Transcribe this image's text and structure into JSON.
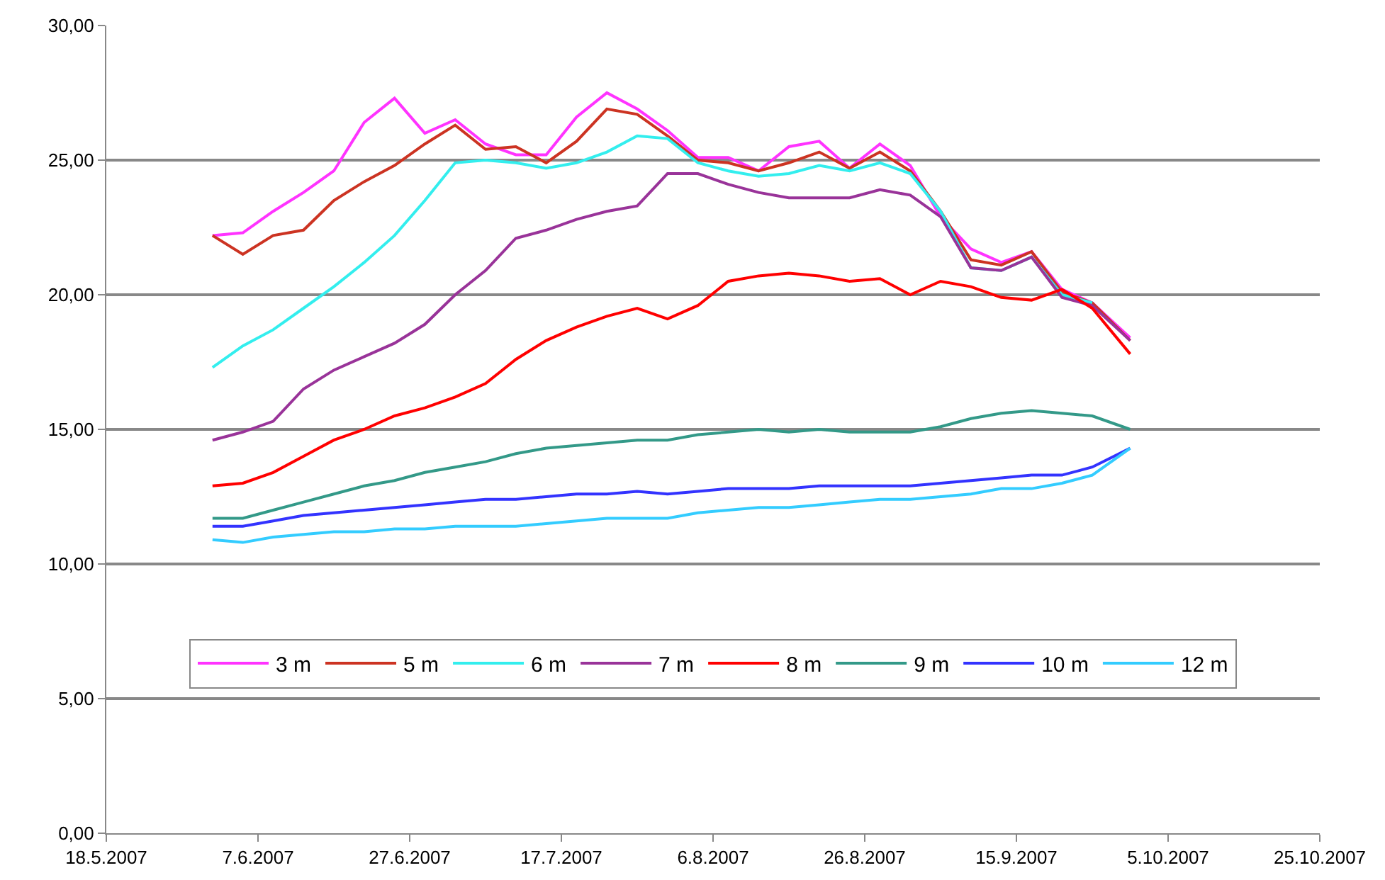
{
  "chart_data": {
    "type": "line",
    "x": [
      "2007-06-01",
      "2007-06-05",
      "2007-06-09",
      "2007-06-13",
      "2007-06-17",
      "2007-06-21",
      "2007-06-25",
      "2007-06-29",
      "2007-07-03",
      "2007-07-07",
      "2007-07-11",
      "2007-07-15",
      "2007-07-19",
      "2007-07-23",
      "2007-07-27",
      "2007-07-31",
      "2007-08-04",
      "2007-08-08",
      "2007-08-12",
      "2007-08-16",
      "2007-08-20",
      "2007-08-24",
      "2007-08-28",
      "2007-09-01",
      "2007-09-05",
      "2007-09-09",
      "2007-09-13",
      "2007-09-17",
      "2007-09-21",
      "2007-09-25",
      "2007-09-30"
    ],
    "series": [
      {
        "name": "3 m",
        "color": "#ff33ff",
        "values": [
          22.2,
          22.3,
          23.1,
          23.8,
          24.6,
          26.4,
          27.3,
          26.0,
          26.5,
          25.6,
          25.2,
          25.2,
          26.6,
          27.5,
          26.9,
          26.1,
          25.1,
          25.1,
          24.6,
          25.5,
          25.7,
          24.7,
          25.6,
          24.8,
          22.9,
          21.7,
          21.2,
          21.6,
          20.2,
          19.7,
          18.4
        ]
      },
      {
        "name": "5 m",
        "color": "#cc3322",
        "values": [
          22.2,
          21.5,
          22.2,
          22.4,
          23.5,
          24.2,
          24.8,
          25.6,
          26.3,
          25.4,
          25.5,
          24.9,
          25.7,
          26.9,
          26.7,
          25.9,
          25.0,
          24.9,
          24.6,
          24.9,
          25.3,
          24.7,
          25.3,
          24.6,
          23.1,
          21.3,
          21.1,
          21.6,
          20.1,
          19.7,
          18.3
        ]
      },
      {
        "name": "6 m",
        "color": "#33eeee",
        "values": [
          17.3,
          18.1,
          18.7,
          19.5,
          20.3,
          21.2,
          22.2,
          23.5,
          24.9,
          25.0,
          24.9,
          24.7,
          24.9,
          25.3,
          25.9,
          25.8,
          24.9,
          24.6,
          24.4,
          24.5,
          24.8,
          24.6,
          24.9,
          24.5,
          23.1,
          21.0,
          20.9,
          21.4,
          20.0,
          19.7,
          null
        ]
      },
      {
        "name": "7 m",
        "color": "#993399",
        "values": [
          14.6,
          14.9,
          15.3,
          16.5,
          17.2,
          17.7,
          18.2,
          18.9,
          20.0,
          20.9,
          22.1,
          22.4,
          22.8,
          23.1,
          23.3,
          24.5,
          24.5,
          24.1,
          23.8,
          23.6,
          23.6,
          23.6,
          23.9,
          23.7,
          22.9,
          21.0,
          20.9,
          21.4,
          19.9,
          19.6,
          18.3
        ]
      },
      {
        "name": "8 m",
        "color": "#ff0000",
        "values": [
          12.9,
          13.0,
          13.4,
          14.0,
          14.6,
          15.0,
          15.5,
          15.8,
          16.2,
          16.7,
          17.6,
          18.3,
          18.8,
          19.2,
          19.5,
          19.1,
          19.6,
          20.5,
          20.7,
          20.8,
          20.7,
          20.5,
          20.6,
          20.0,
          20.5,
          20.3,
          19.9,
          19.8,
          20.2,
          19.5,
          17.8
        ]
      },
      {
        "name": "9 m",
        "color": "#339988",
        "values": [
          11.7,
          11.7,
          12.0,
          12.3,
          12.6,
          12.9,
          13.1,
          13.4,
          13.6,
          13.8,
          14.1,
          14.3,
          14.4,
          14.5,
          14.6,
          14.6,
          14.8,
          14.9,
          15.0,
          14.9,
          15.0,
          14.9,
          14.9,
          14.9,
          15.1,
          15.4,
          15.6,
          15.7,
          15.6,
          15.5,
          15.0
        ]
      },
      {
        "name": "10 m",
        "color": "#3333ff",
        "values": [
          11.4,
          11.4,
          11.6,
          11.8,
          11.9,
          12.0,
          12.1,
          12.2,
          12.3,
          12.4,
          12.4,
          12.5,
          12.6,
          12.6,
          12.7,
          12.6,
          12.7,
          12.8,
          12.8,
          12.8,
          12.9,
          12.9,
          12.9,
          12.9,
          13.0,
          13.1,
          13.2,
          13.3,
          13.3,
          13.6,
          14.3
        ]
      },
      {
        "name": "12 m",
        "color": "#33ccff",
        "values": [
          10.9,
          10.8,
          11.0,
          11.1,
          11.2,
          11.2,
          11.3,
          11.3,
          11.4,
          11.4,
          11.4,
          11.5,
          11.6,
          11.7,
          11.7,
          11.7,
          11.9,
          12.0,
          12.1,
          12.1,
          12.2,
          12.3,
          12.4,
          12.4,
          12.5,
          12.6,
          12.8,
          12.8,
          13.0,
          13.3,
          14.3
        ]
      }
    ],
    "xlim": [
      "2007-05-18",
      "2007-10-25"
    ],
    "xticks": [
      {
        "value": "2007-05-18",
        "label": "18.5.2007"
      },
      {
        "value": "2007-06-07",
        "label": "7.6.2007"
      },
      {
        "value": "2007-06-27",
        "label": "27.6.2007"
      },
      {
        "value": "2007-07-17",
        "label": "17.7.2007"
      },
      {
        "value": "2007-08-06",
        "label": "6.8.2007"
      },
      {
        "value": "2007-08-26",
        "label": "26.8.2007"
      },
      {
        "value": "2007-09-15",
        "label": "15.9.2007"
      },
      {
        "value": "2007-10-05",
        "label": "5.10.2007"
      },
      {
        "value": "2007-10-25",
        "label": "25.10.2007"
      }
    ],
    "ylim": [
      0,
      30
    ],
    "yticks": [
      {
        "value": 0,
        "label": "0,00"
      },
      {
        "value": 5,
        "label": "5,00"
      },
      {
        "value": 10,
        "label": "10,00"
      },
      {
        "value": 15,
        "label": "15,00"
      },
      {
        "value": 20,
        "label": "20,00"
      },
      {
        "value": 25,
        "label": "25,00"
      },
      {
        "value": 30,
        "label": "30,00"
      }
    ],
    "grid": "y",
    "legend": "bottom",
    "marker": "none",
    "line_style": "solid"
  }
}
